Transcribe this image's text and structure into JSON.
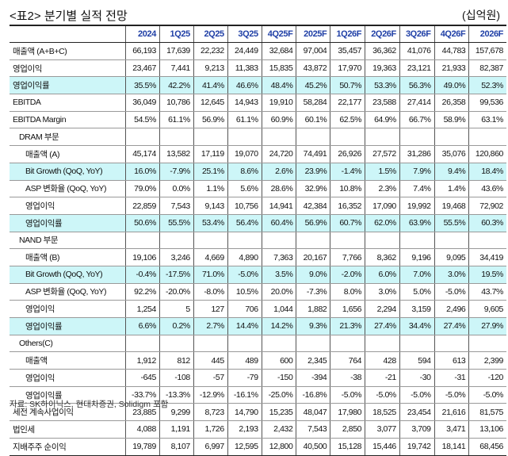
{
  "title": "<표2> 분기별 실적 전망",
  "unit": "(십억원)",
  "columns": [
    "",
    "2024",
    "1Q25",
    "2Q25",
    "3Q25",
    "4Q25F",
    "2025F",
    "1Q26F",
    "2Q26F",
    "3Q26F",
    "4Q26F",
    "2026F"
  ],
  "rows": [
    {
      "label": "매출액 (A+B+C)",
      "indent": 0,
      "hl": false,
      "values": [
        "66,193",
        "17,639",
        "22,232",
        "24,449",
        "32,684",
        "97,004",
        "35,457",
        "36,362",
        "41,076",
        "44,783",
        "157,678"
      ]
    },
    {
      "label": "영업이익",
      "indent": 0,
      "hl": false,
      "values": [
        "23,467",
        "7,441",
        "9,213",
        "11,383",
        "15,835",
        "43,872",
        "17,970",
        "19,363",
        "23,121",
        "21,933",
        "82,387"
      ]
    },
    {
      "label": "영업이익률",
      "indent": 0,
      "hl": true,
      "values": [
        "35.5%",
        "42.2%",
        "41.4%",
        "46.6%",
        "48.4%",
        "45.2%",
        "50.7%",
        "53.3%",
        "56.3%",
        "49.0%",
        "52.3%"
      ]
    },
    {
      "label": "EBITDA",
      "indent": 0,
      "hl": false,
      "values": [
        "36,049",
        "10,786",
        "12,645",
        "14,943",
        "19,910",
        "58,284",
        "22,177",
        "23,588",
        "27,414",
        "26,358",
        "99,536"
      ]
    },
    {
      "label": "EBITDA Margin",
      "indent": 0,
      "hl": false,
      "values": [
        "54.5%",
        "61.1%",
        "56.9%",
        "61.1%",
        "60.9%",
        "60.1%",
        "62.5%",
        "64.9%",
        "66.7%",
        "58.9%",
        "63.1%"
      ]
    },
    {
      "label": "DRAM 부문",
      "indent": 1,
      "hl": false,
      "values": [
        "",
        "",
        "",
        "",
        "",
        "",
        "",
        "",
        "",
        "",
        ""
      ]
    },
    {
      "label": "매출액 (A)",
      "indent": 2,
      "hl": false,
      "values": [
        "45,174",
        "13,582",
        "17,119",
        "19,070",
        "24,720",
        "74,491",
        "26,926",
        "27,572",
        "31,286",
        "35,076",
        "120,860"
      ]
    },
    {
      "label": "Bit Growth (QoQ, YoY)",
      "indent": 2,
      "hl": true,
      "values": [
        "16.0%",
        "-7.9%",
        "25.1%",
        "8.6%",
        "2.6%",
        "23.9%",
        "-1.4%",
        "1.5%",
        "7.9%",
        "9.4%",
        "18.4%"
      ]
    },
    {
      "label": "ASP 변화율 (QoQ, YoY)",
      "indent": 2,
      "hl": false,
      "values": [
        "79.0%",
        "0.0%",
        "1.1%",
        "5.6%",
        "28.6%",
        "32.9%",
        "10.8%",
        "2.3%",
        "7.4%",
        "1.4%",
        "43.6%"
      ]
    },
    {
      "label": "영업이익",
      "indent": 2,
      "hl": false,
      "values": [
        "22,859",
        "7,543",
        "9,143",
        "10,756",
        "14,941",
        "42,384",
        "16,352",
        "17,090",
        "19,992",
        "19,468",
        "72,902"
      ]
    },
    {
      "label": "영업이익률",
      "indent": 2,
      "hl": true,
      "values": [
        "50.6%",
        "55.5%",
        "53.4%",
        "56.4%",
        "60.4%",
        "56.9%",
        "60.7%",
        "62.0%",
        "63.9%",
        "55.5%",
        "60.3%"
      ]
    },
    {
      "label": "NAND 부문",
      "indent": 1,
      "hl": false,
      "values": [
        "",
        "",
        "",
        "",
        "",
        "",
        "",
        "",
        "",
        "",
        ""
      ]
    },
    {
      "label": "매출액 (B)",
      "indent": 2,
      "hl": false,
      "values": [
        "19,106",
        "3,246",
        "4,669",
        "4,890",
        "7,363",
        "20,167",
        "7,766",
        "8,362",
        "9,196",
        "9,095",
        "34,419"
      ]
    },
    {
      "label": "Bit Growth (QoQ, YoY)",
      "indent": 2,
      "hl": true,
      "values": [
        "-0.4%",
        "-17.5%",
        "71.0%",
        "-5.0%",
        "3.5%",
        "9.0%",
        "-2.0%",
        "6.0%",
        "7.0%",
        "3.0%",
        "19.5%"
      ]
    },
    {
      "label": "ASP 변화율 (QoQ, YoY)",
      "indent": 2,
      "hl": false,
      "values": [
        "92.2%",
        "-20.0%",
        "-8.0%",
        "10.5%",
        "20.0%",
        "-7.3%",
        "8.0%",
        "3.0%",
        "5.0%",
        "-5.0%",
        "43.7%"
      ]
    },
    {
      "label": "영업이익",
      "indent": 2,
      "hl": false,
      "values": [
        "1,254",
        "5",
        "127",
        "706",
        "1,044",
        "1,882",
        "1,656",
        "2,294",
        "3,159",
        "2,496",
        "9,605"
      ]
    },
    {
      "label": "영업이익률",
      "indent": 2,
      "hl": true,
      "values": [
        "6.6%",
        "0.2%",
        "2.7%",
        "14.4%",
        "14.2%",
        "9.3%",
        "21.3%",
        "27.4%",
        "34.4%",
        "27.4%",
        "27.9%"
      ]
    },
    {
      "label": "Others(C)",
      "indent": 1,
      "hl": false,
      "values": [
        "",
        "",
        "",
        "",
        "",
        "",
        "",
        "",
        "",
        "",
        ""
      ]
    },
    {
      "label": "매출액",
      "indent": 2,
      "hl": false,
      "values": [
        "1,912",
        "812",
        "445",
        "489",
        "600",
        "2,345",
        "764",
        "428",
        "594",
        "613",
        "2,399"
      ]
    },
    {
      "label": "영업이익",
      "indent": 2,
      "hl": false,
      "values": [
        "-645",
        "-108",
        "-57",
        "-79",
        "-150",
        "-394",
        "-38",
        "-21",
        "-30",
        "-31",
        "-120"
      ]
    },
    {
      "label": "영업이익률",
      "indent": 2,
      "hl": false,
      "values": [
        "-33.7%",
        "-13.3%",
        "-12.9%",
        "-16.1%",
        "-25.0%",
        "-16.8%",
        "-5.0%",
        "-5.0%",
        "-5.0%",
        "-5.0%",
        "-5.0%"
      ]
    },
    {
      "label": "세전 계속사업이익",
      "indent": 0,
      "hl": false,
      "values": [
        "23,885",
        "9,299",
        "8,723",
        "14,790",
        "15,235",
        "48,047",
        "17,980",
        "18,525",
        "23,454",
        "21,616",
        "81,575"
      ]
    },
    {
      "label": "법인세",
      "indent": 0,
      "hl": false,
      "values": [
        "4,088",
        "1,191",
        "1,726",
        "2,193",
        "2,432",
        "7,543",
        "2,850",
        "3,077",
        "3,709",
        "3,471",
        "13,106"
      ]
    },
    {
      "label": "지배주주 순이익",
      "indent": 0,
      "hl": false,
      "values": [
        "19,789",
        "8,107",
        "6,997",
        "12,595",
        "12,800",
        "40,500",
        "15,128",
        "15,446",
        "19,742",
        "18,141",
        "68,456"
      ]
    }
  ],
  "source": "자료: SK하이닉스, 현대차증권, Solidigm 포함",
  "colors": {
    "header_text": "#1f3fa6",
    "highlight": "#cdf6f8"
  }
}
